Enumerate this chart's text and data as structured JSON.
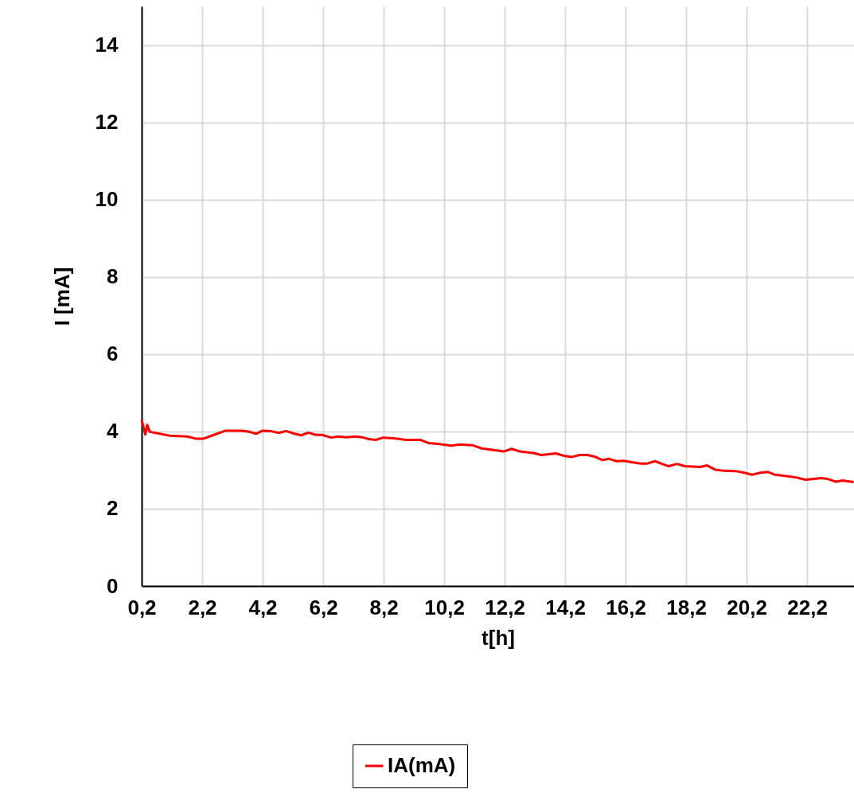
{
  "chart_data": {
    "type": "line",
    "xlabel": "t[h]",
    "ylabel": "I [mA]",
    "x": [
      0.2,
      0.32,
      0.38,
      0.47,
      1.13,
      1.7,
      2.01,
      2.23,
      2.62,
      2.97,
      3.5,
      3.76,
      3.98,
      4.2,
      4.46,
      4.73,
      4.97,
      5.25,
      5.47,
      5.71,
      5.96,
      6.17,
      6.46,
      6.7,
      6.96,
      7.27,
      7.49,
      7.71,
      7.93,
      8.19,
      8.54,
      8.94,
      9.42,
      9.68,
      9.99,
      10.43,
      10.69,
      11.15,
      11.44,
      11.74,
      12.17,
      12.43,
      12.71,
      13.15,
      13.41,
      13.89,
      14.16,
      14.42,
      14.68,
      14.94,
      15.17,
      15.43,
      15.65,
      15.91,
      16.13,
      16.44,
      16.7,
      16.92,
      17.17,
      17.4,
      17.62,
      17.9,
      18.15,
      18.67,
      18.89,
      19.16,
      19.46,
      19.86,
      20.12,
      20.38,
      20.65,
      20.91,
      21.13,
      21.48,
      21.83,
      22.14,
      22.67,
      22.88,
      23.15,
      23.37,
      23.74
    ],
    "series": [
      {
        "name": "IA(mA)",
        "color": "#ff0000",
        "values": [
          4.3,
          3.92,
          4.17,
          3.99,
          3.89,
          3.87,
          3.81,
          3.81,
          3.92,
          4.02,
          4.02,
          3.99,
          3.94,
          4.02,
          4.01,
          3.96,
          4.01,
          3.94,
          3.9,
          3.97,
          3.91,
          3.91,
          3.84,
          3.87,
          3.85,
          3.87,
          3.85,
          3.8,
          3.78,
          3.84,
          3.82,
          3.78,
          3.78,
          3.7,
          3.68,
          3.63,
          3.66,
          3.64,
          3.56,
          3.53,
          3.48,
          3.55,
          3.48,
          3.44,
          3.39,
          3.43,
          3.37,
          3.34,
          3.39,
          3.39,
          3.35,
          3.26,
          3.29,
          3.23,
          3.24,
          3.2,
          3.17,
          3.17,
          3.23,
          3.16,
          3.1,
          3.16,
          3.1,
          3.08,
          3.12,
          3.01,
          2.98,
          2.97,
          2.93,
          2.88,
          2.93,
          2.95,
          2.88,
          2.85,
          2.81,
          2.75,
          2.79,
          2.77,
          2.7,
          2.73,
          2.69
        ]
      }
    ],
    "xlim": [
      0.2,
      23.75
    ],
    "xticks": [
      {
        "value": 0.2,
        "label": "0,2"
      },
      {
        "value": 2.2,
        "label": "2,2"
      },
      {
        "value": 4.2,
        "label": "4,2"
      },
      {
        "value": 6.2,
        "label": "6,2"
      },
      {
        "value": 8.2,
        "label": "8,2"
      },
      {
        "value": 10.2,
        "label": "10,2"
      },
      {
        "value": 12.2,
        "label": "12,2"
      },
      {
        "value": 14.2,
        "label": "14,2"
      },
      {
        "value": 16.2,
        "label": "16,2"
      },
      {
        "value": 18.2,
        "label": "18,2"
      },
      {
        "value": 20.2,
        "label": "20,2"
      },
      {
        "value": 22.2,
        "label": "22,2"
      }
    ],
    "ylim": [
      0,
      15
    ],
    "yticks": [
      0,
      2,
      4,
      6,
      8,
      10,
      12,
      14
    ],
    "grid": true,
    "legend": "bottom",
    "marker": "none",
    "line_style": "solid"
  }
}
